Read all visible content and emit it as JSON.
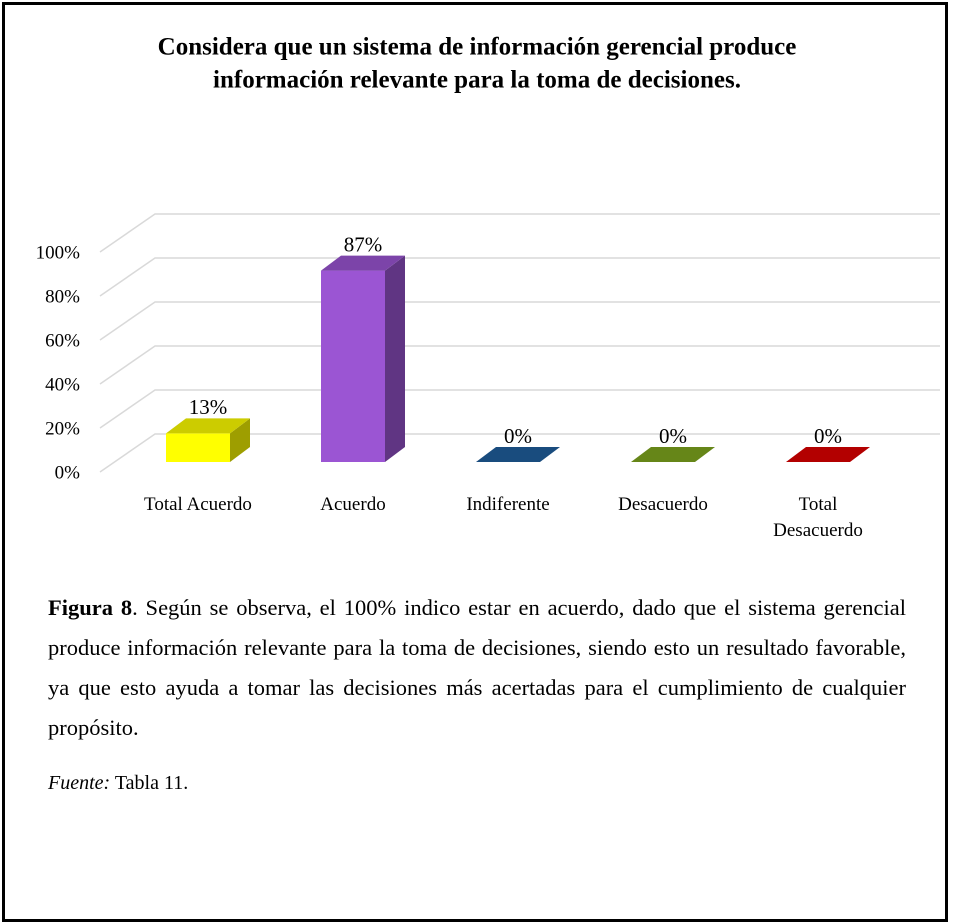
{
  "chart_data": {
    "type": "bar3d",
    "title": [
      "Considera que un sistema de información gerencial produce",
      "información relevante para la toma de decisiones."
    ],
    "categories": [
      "Total Acuerdo",
      "Acuerdo",
      "Indiferente",
      "Desacuerdo",
      "Total Desacuerdo"
    ],
    "values": [
      13,
      87,
      0,
      0,
      0
    ],
    "value_labels": [
      "13%",
      "87%",
      "0%",
      "0%",
      "0%"
    ],
    "colors": [
      "#ffff00",
      "#9b55d3",
      "#1f5f9e",
      "#7fa81e",
      "#e00000"
    ],
    "ylim": [
      0,
      100
    ],
    "yticks": [
      {
        "value": 0,
        "label": "0%"
      },
      {
        "value": 20,
        "label": "20%"
      },
      {
        "value": 40,
        "label": "40%"
      },
      {
        "value": 60,
        "label": "60%"
      },
      {
        "value": 80,
        "label": "80%"
      },
      {
        "value": 100,
        "label": "100%"
      }
    ],
    "grid": true
  },
  "caption": {
    "label": "Figura 8",
    "text": ". Según se observa, el 100% indico estar en acuerdo, dado que el sistema gerencial produce información relevante para la toma de decisiones, siendo esto un resultado favorable, ya que esto ayuda a tomar las decisiones más acertadas para el cumplimiento de cualquier propósito."
  },
  "source": {
    "label": "Fuente:",
    "text": "Tabla 11."
  }
}
